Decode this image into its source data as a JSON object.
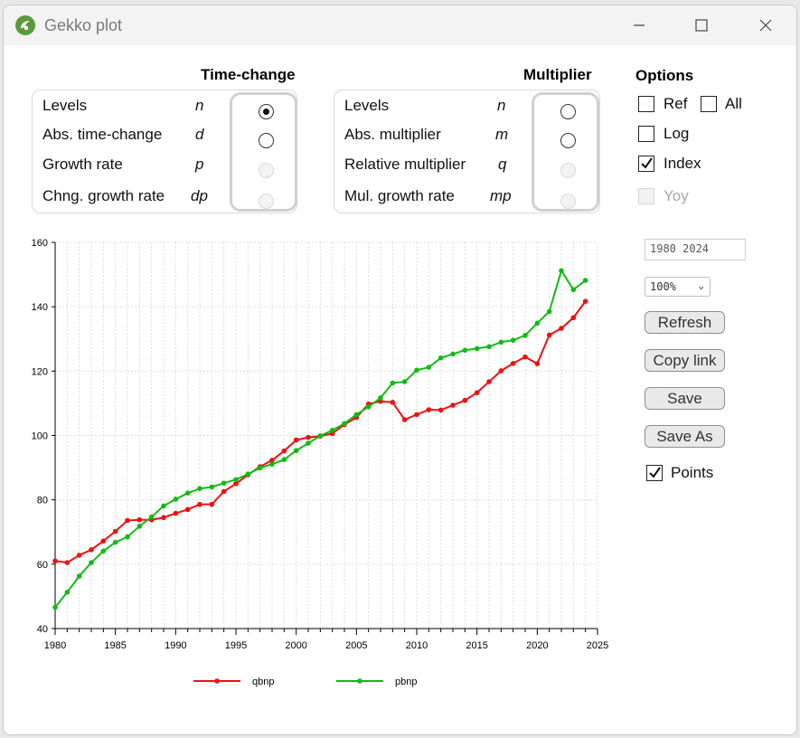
{
  "window": {
    "title": "Gekko plot"
  },
  "timechange": {
    "header": "Time-change",
    "rows": [
      {
        "label": "Levels",
        "code": "n",
        "state": "checked"
      },
      {
        "label": "Abs. time-change",
        "code": "d",
        "state": "unchecked"
      },
      {
        "label": "Growth rate",
        "code": "p",
        "state": "disabled"
      },
      {
        "label": "Chng. growth rate",
        "code": "dp",
        "state": "disabled"
      }
    ]
  },
  "multiplier": {
    "header": "Multiplier",
    "rows": [
      {
        "label": "Levels",
        "code": "n",
        "state": "unchecked"
      },
      {
        "label": "Abs. multiplier",
        "code": "m",
        "state": "unchecked"
      },
      {
        "label": "Relative multiplier",
        "code": "q",
        "state": "disabled"
      },
      {
        "label": "Mul. growth rate",
        "code": "mp",
        "state": "disabled"
      }
    ]
  },
  "options": {
    "header": "Options",
    "ref": {
      "label": "Ref",
      "checked": false
    },
    "all": {
      "label": "All",
      "checked": false
    },
    "log": {
      "label": "Log",
      "checked": false
    },
    "index": {
      "label": "Index",
      "checked": true
    },
    "yoy": {
      "label": "Yoy",
      "checked": false,
      "disabled": true
    },
    "period_value": "1980 2024",
    "zoom_value": "100%",
    "refresh_label": "Refresh",
    "copy_link_label": "Copy link",
    "save_label": "Save",
    "save_as_label": "Save As",
    "points": {
      "label": "Points",
      "checked": true
    }
  },
  "chart_data": {
    "type": "line",
    "xlim": [
      1980,
      2025
    ],
    "ylim": [
      40,
      160
    ],
    "x_ticks": [
      1980,
      1985,
      1990,
      1995,
      2000,
      2005,
      2010,
      2015,
      2020,
      2025
    ],
    "y_ticks": [
      40,
      60,
      80,
      100,
      120,
      140,
      160
    ],
    "grid": true,
    "legend_position": "bottom",
    "x": [
      1980,
      1981,
      1982,
      1983,
      1984,
      1985,
      1986,
      1987,
      1988,
      1989,
      1990,
      1991,
      1992,
      1993,
      1994,
      1995,
      1996,
      1997,
      1998,
      1999,
      2000,
      2001,
      2002,
      2003,
      2004,
      2005,
      2006,
      2007,
      2008,
      2009,
      2010,
      2011,
      2012,
      2013,
      2014,
      2015,
      2016,
      2017,
      2018,
      2019,
      2020,
      2021,
      2022,
      2023,
      2024
    ],
    "series": [
      {
        "name": "qbnp",
        "color": "#ee1111",
        "values": [
          61.0,
          60.5,
          62.8,
          64.5,
          67.2,
          70.2,
          73.6,
          73.8,
          73.8,
          74.5,
          75.8,
          77.0,
          78.6,
          78.6,
          82.6,
          85.0,
          87.8,
          90.3,
          92.3,
          95.2,
          98.6,
          99.4,
          99.8,
          100.6,
          103.4,
          105.6,
          109.8,
          110.6,
          110.3,
          104.9,
          106.5,
          108.0,
          107.9,
          109.4,
          110.9,
          113.3,
          116.7,
          120.1,
          122.4,
          124.4,
          122.3,
          131.2,
          133.3,
          136.6,
          141.7
        ]
      },
      {
        "name": "pbnp",
        "color": "#11bb11",
        "values": [
          46.6,
          51.3,
          56.3,
          60.5,
          64.1,
          66.8,
          68.5,
          71.8,
          74.7,
          78.1,
          80.2,
          82.1,
          83.5,
          84.0,
          85.2,
          86.3,
          88.0,
          89.9,
          91.1,
          92.5,
          95.3,
          97.6,
          99.9,
          101.6,
          103.7,
          106.5,
          108.9,
          111.7,
          116.3,
          116.7,
          120.3,
          121.2,
          124.1,
          125.3,
          126.5,
          127.0,
          127.6,
          129.0,
          129.6,
          131.1,
          134.9,
          138.5,
          151.2,
          145.3,
          148.2
        ]
      }
    ]
  }
}
